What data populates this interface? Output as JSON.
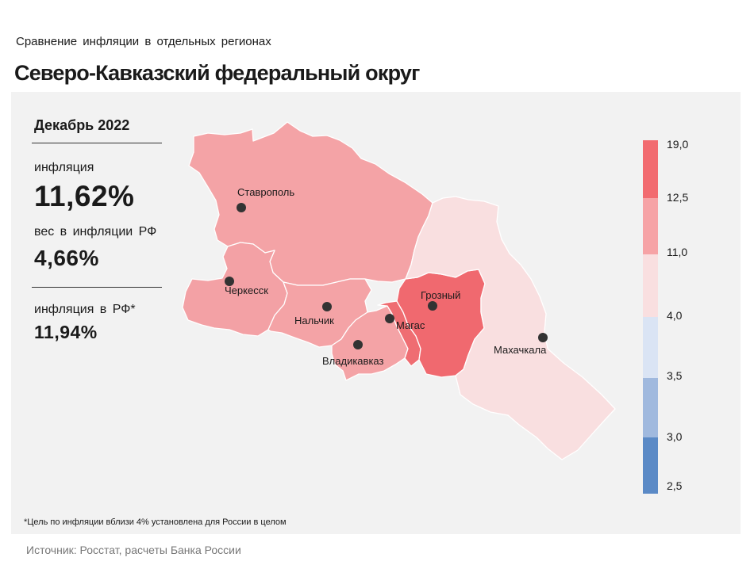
{
  "header": {
    "subtitle": "Сравнение  инфляции  в отдельных  регионах",
    "title": "Северо-Кавказский федеральный округ"
  },
  "stats": {
    "period": "Декабрь 2022",
    "inflation_label": "инфляция",
    "inflation_value": "11,62%",
    "weight_label": "вес в инфляции  РФ",
    "weight_value": "4,66%",
    "rf_label": "инфляция  в РФ*",
    "rf_value": "11,94%"
  },
  "map": {
    "cities": [
      {
        "name": "Ставрополь"
      },
      {
        "name": "Черкесск"
      },
      {
        "name": "Нальчик"
      },
      {
        "name": "Владикавказ"
      },
      {
        "name": "Магас"
      },
      {
        "name": "Грозный"
      },
      {
        "name": "Махачкала"
      }
    ],
    "region_colors": {
      "stavropol": "#f4a3a6",
      "kchr": "#f3a1a5",
      "kbr": "#f4a3a6",
      "north_ossetia": "#f4a3a6",
      "ingushetia": "#ef6d72",
      "chechnya": "#f0696f",
      "dagestan": "#f9dfe0"
    }
  },
  "legend": {
    "colors": [
      "#f26b70",
      "#f6a3a6",
      "#f9dfe0",
      "#dae4f4",
      "#a0b9de",
      "#5b8ac6"
    ],
    "labels": [
      "19,0",
      "12,5",
      "11,0",
      "4,0",
      "3,5",
      "3,0",
      "2,5"
    ]
  },
  "footnote": "*Цель по инфляции вблизи 4% установлена для России в целом",
  "source": "Источник: Росстат, расчеты Банка России"
}
